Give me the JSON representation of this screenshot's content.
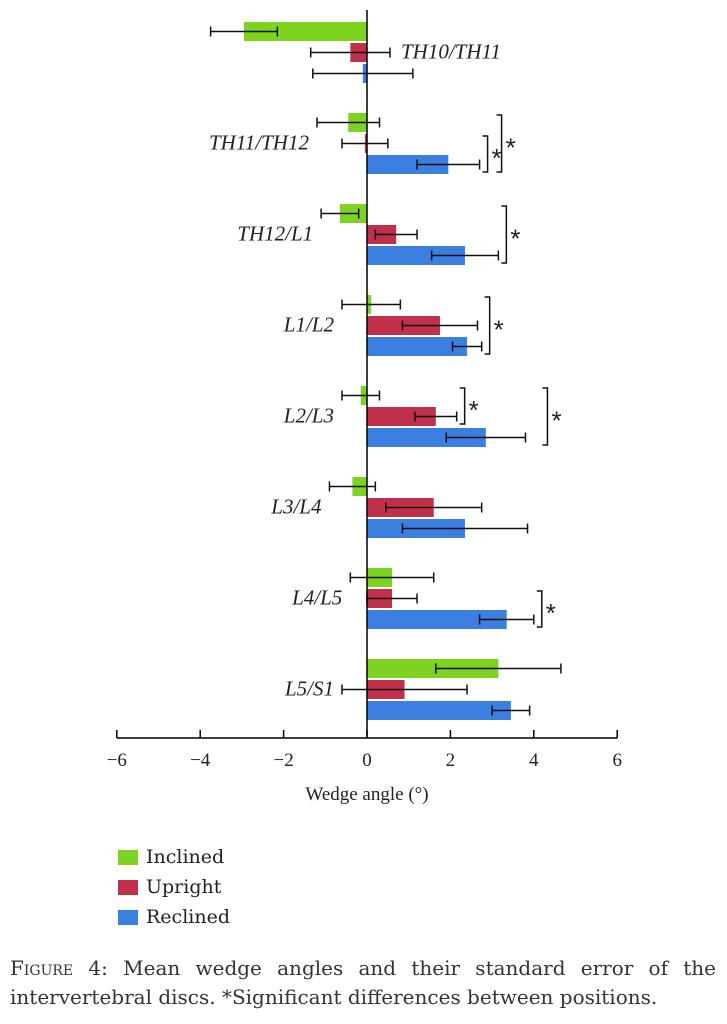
{
  "chart_data": {
    "type": "bar",
    "orientation": "horizontal",
    "categories": [
      "TH10/TH11",
      "TH11/TH12",
      "TH12/L1",
      "L1/L2",
      "L2/L3",
      "L3/L4",
      "L4/L5",
      "L5/S1"
    ],
    "series": [
      {
        "name": "Inclined",
        "color": "#7ed321",
        "values": [
          -2.95,
          -0.45,
          -0.65,
          0.1,
          -0.15,
          -0.35,
          0.6,
          3.15
        ],
        "errors": [
          0.8,
          0.75,
          0.45,
          0.7,
          0.45,
          0.55,
          1.0,
          1.5
        ]
      },
      {
        "name": "Upright",
        "color": "#c1304b",
        "values": [
          -0.4,
          -0.05,
          0.7,
          1.75,
          1.65,
          1.6,
          0.6,
          0.9
        ],
        "errors": [
          0.95,
          0.55,
          0.5,
          0.9,
          0.5,
          1.15,
          0.6,
          1.5
        ]
      },
      {
        "name": "Reclined",
        "color": "#3b7fe0",
        "values": [
          -0.1,
          1.95,
          2.35,
          2.4,
          2.85,
          2.35,
          3.35,
          3.45
        ],
        "errors": [
          1.2,
          0.75,
          0.8,
          0.35,
          0.95,
          1.5,
          0.65,
          0.45
        ]
      }
    ],
    "xlabel": "Wedge angle (°)",
    "xlim": [
      -6,
      6
    ],
    "xticks": [
      "−6",
      "−4",
      "−2",
      "0",
      "2",
      "4",
      "6"
    ],
    "xtick_values": [
      -6,
      -4,
      -2,
      0,
      2,
      4,
      6
    ],
    "grid": false,
    "legend_position": "bottom-left",
    "significance": [
      {
        "category": "TH11/TH12",
        "between": [
          "Upright",
          "Reclined"
        ],
        "label": "*"
      },
      {
        "category": "TH11/TH12",
        "between": [
          "Inclined",
          "Reclined"
        ],
        "label": "*"
      },
      {
        "category": "TH12/L1",
        "between": [
          "Inclined",
          "Reclined"
        ],
        "label": "*"
      },
      {
        "category": "L1/L2",
        "between": [
          "Inclined",
          "Reclined"
        ],
        "label": "*"
      },
      {
        "category": "L2/L3",
        "between": [
          "Inclined",
          "Upright"
        ],
        "label": "*"
      },
      {
        "category": "L2/L3",
        "between": [
          "Inclined",
          "Reclined"
        ],
        "label": "*"
      },
      {
        "category": "L4/L5",
        "between": [
          "Upright",
          "Reclined"
        ],
        "label": "*"
      }
    ]
  },
  "caption": {
    "prefix": "Figure 4:",
    "text": " Mean wedge angles and their standard error of the intervertebral discs. *Significant differences between positions."
  }
}
